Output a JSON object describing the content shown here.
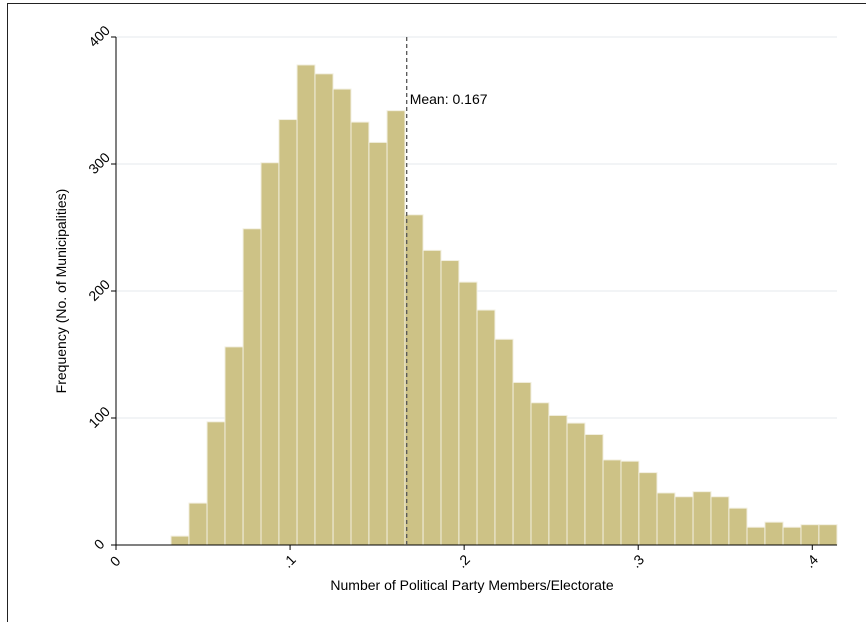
{
  "chart_data": {
    "type": "histogram",
    "x_label": "Number of Political Party Members/Electorate",
    "y_label": "Frequency (No. of Municipalities)",
    "bins": [
      0.0316,
      0.0419,
      0.0523,
      0.0626,
      0.073,
      0.0833,
      0.0936,
      0.104,
      0.1143,
      0.1247,
      0.135,
      0.1453,
      0.1557,
      0.166,
      0.1764,
      0.1867,
      0.197,
      0.2074,
      0.2177,
      0.2281,
      0.2384,
      0.2487,
      0.2591,
      0.2694,
      0.2798,
      0.2901,
      0.3004,
      0.3108,
      0.3211,
      0.3315,
      0.3418,
      0.3521,
      0.3625,
      0.3728,
      0.3832,
      0.3935,
      0.4038,
      0.4142
    ],
    "values": [
      7,
      33,
      97,
      156,
      249,
      301,
      335,
      378,
      371,
      359,
      333,
      317,
      342,
      260,
      232,
      224,
      207,
      185,
      162,
      128,
      112,
      102,
      96,
      87,
      67,
      66,
      57,
      41,
      38,
      42,
      38,
      29,
      14,
      18,
      14,
      16,
      16
    ],
    "color": "#cdc286",
    "xlim": [
      0,
      0.4142
    ],
    "ylim": [
      0,
      400
    ],
    "xticks": [
      0,
      {
        "value": 0.1,
        "label": ".1"
      },
      {
        "value": 0.2,
        "label": ".2"
      },
      {
        "value": 0.3,
        "label": ".3"
      },
      {
        "value": 0.4,
        "label": ".4"
      }
    ],
    "yticks": [
      0,
      100,
      200,
      300,
      400
    ],
    "grid": true,
    "annotation": {
      "text": "Mean: 0.167",
      "x": 0.167
    }
  }
}
